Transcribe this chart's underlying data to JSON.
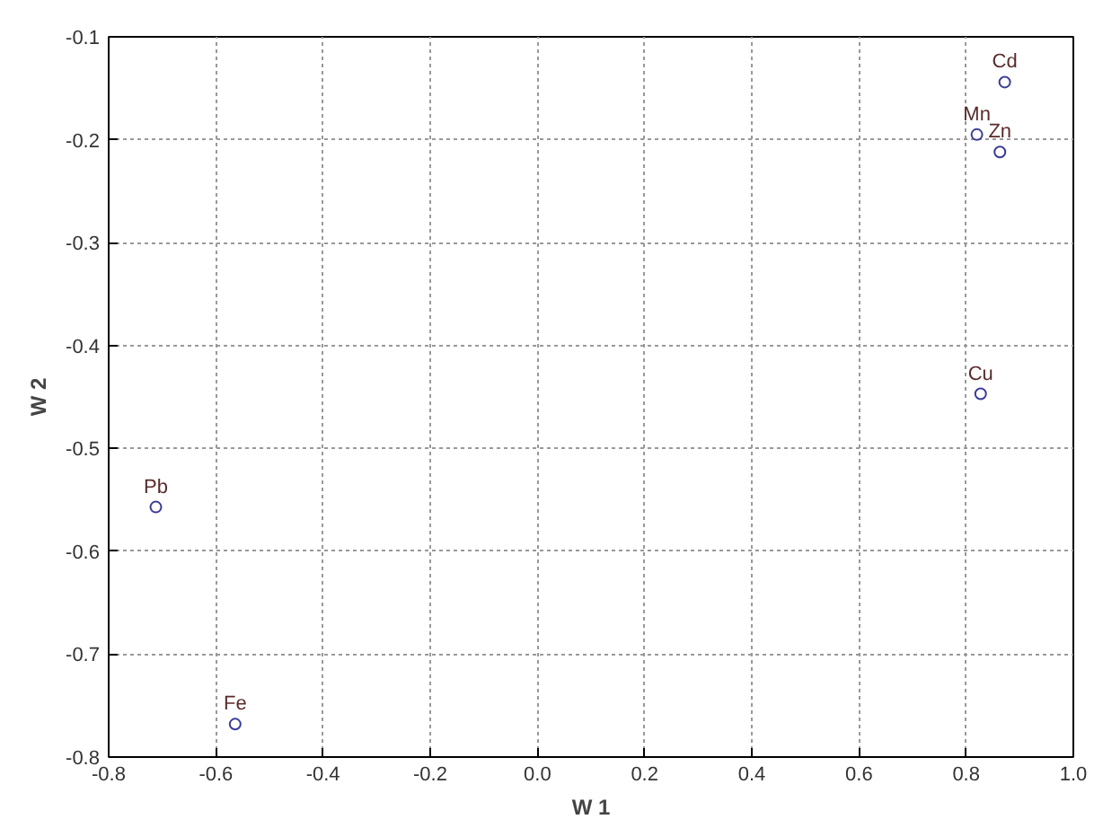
{
  "chart_data": {
    "type": "scatter",
    "xlabel": "W 1",
    "ylabel": "W 2",
    "x": [
      0.872,
      0.82,
      0.863,
      0.827,
      -0.712,
      -0.564
    ],
    "series": [
      {
        "color": "#3b3b9a",
        "values": [
          -0.144,
          -0.195,
          -0.212,
          -0.447,
          -0.557,
          -0.768
        ]
      }
    ],
    "annotations": [
      {
        "text": "Cd",
        "x": 0.872,
        "y": -0.144
      },
      {
        "text": "Mn",
        "x": 0.82,
        "y": -0.195
      },
      {
        "text": "Zn",
        "x": 0.863,
        "y": -0.212
      },
      {
        "text": "Cu",
        "x": 0.827,
        "y": -0.447
      },
      {
        "text": "Pb",
        "x": -0.712,
        "y": -0.557
      },
      {
        "text": "Fe",
        "x": -0.564,
        "y": -0.768
      }
    ],
    "xlim": [
      -0.8,
      1.0
    ],
    "ylim": [
      -0.8,
      -0.1
    ],
    "xticks": [
      -0.8,
      -0.6,
      -0.4,
      -0.2,
      {
        "value": 0,
        "label": "0.0"
      },
      0.2,
      0.4,
      0.6,
      0.8,
      {
        "value": 1,
        "label": "1.0"
      }
    ],
    "yticks": [
      -0.8,
      -0.7,
      -0.6,
      -0.5,
      -0.4,
      -0.3,
      -0.2,
      -0.1
    ],
    "grid": true,
    "marker": "circle"
  }
}
